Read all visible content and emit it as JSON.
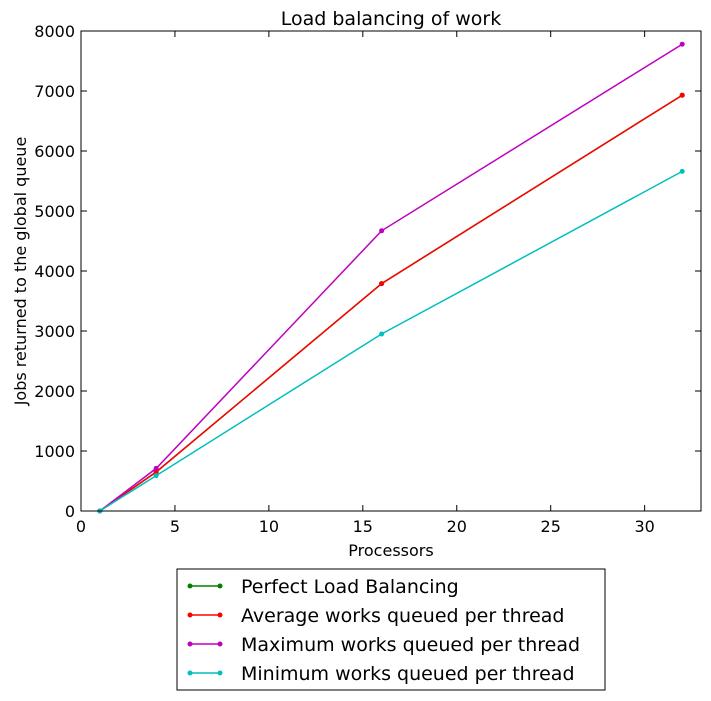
{
  "chart_data": {
    "type": "line",
    "title": "Load balancing of work",
    "xlabel": "Processors",
    "ylabel": "Jobs returned to the global queue",
    "xlim": [
      0,
      33
    ],
    "ylim": [
      0,
      8000
    ],
    "xticks": [
      0,
      5,
      10,
      15,
      20,
      25,
      30
    ],
    "yticks": [
      0,
      1000,
      2000,
      3000,
      4000,
      5000,
      6000,
      7000,
      8000
    ],
    "x": [
      1,
      4,
      16,
      32
    ],
    "grid": false,
    "legend_position": "below",
    "series": [
      {
        "name": "Perfect Load Balancing",
        "color": "#008000",
        "values": [
          0,
          650,
          3790,
          6930
        ]
      },
      {
        "name": " Average works queued per thread",
        "color": "#ff0000",
        "values": [
          0,
          650,
          3790,
          6930
        ]
      },
      {
        "name": "Maximum works queued per thread",
        "color": "#bf00bf",
        "values": [
          0,
          710,
          4670,
          7780
        ]
      },
      {
        "name": "Minimum works queued per thread",
        "color": "#00bfbf",
        "values": [
          0,
          590,
          2950,
          5660
        ]
      }
    ]
  }
}
